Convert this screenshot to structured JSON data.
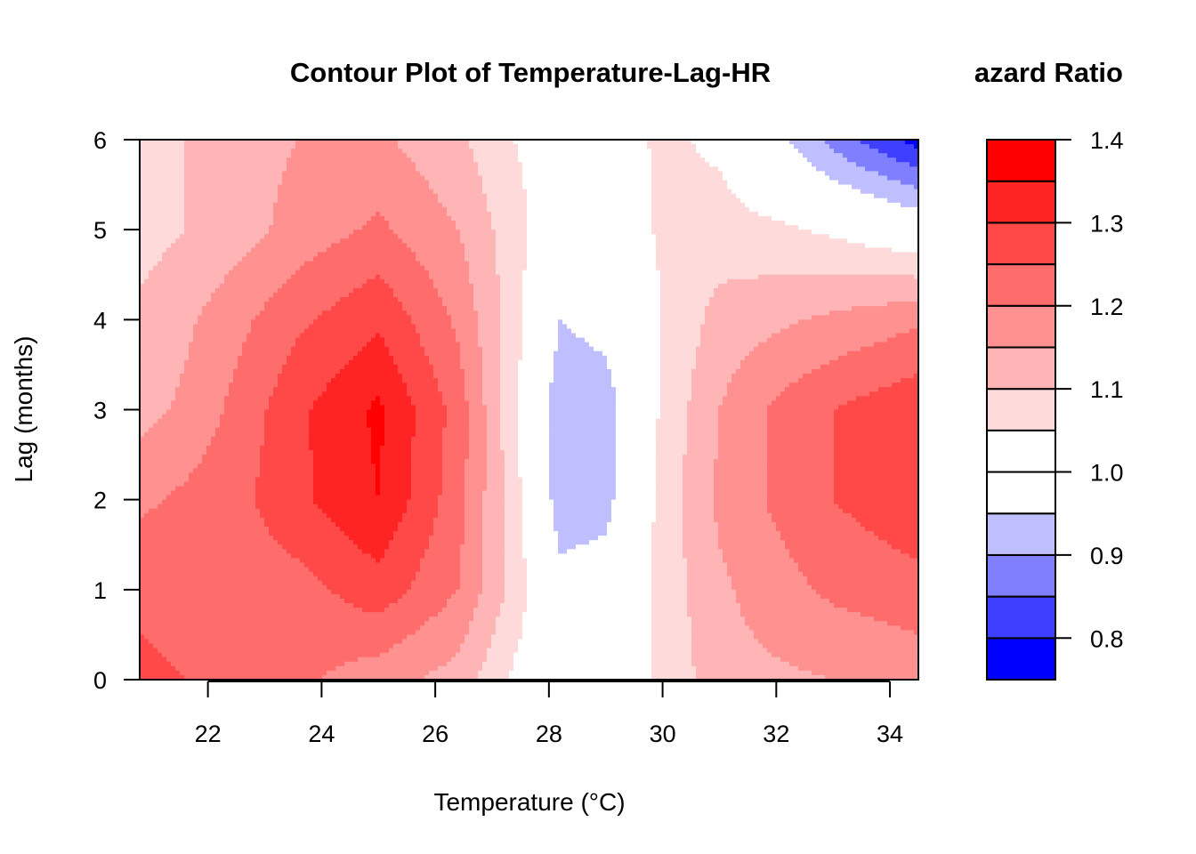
{
  "chart_data": {
    "type": "heatmap",
    "subtype": "filled-contour",
    "title": "Contour Plot of Temperature-Lag-HR",
    "legend_title": "Hazard Ratio",
    "legend_title_visible": "azard Ratio",
    "xlabel": "Temperature (°C)",
    "ylabel": "Lag (months)",
    "xlim": [
      20.8,
      34.5
    ],
    "ylim": [
      0,
      6
    ],
    "x_ticks": [
      "22",
      "24",
      "26",
      "28",
      "30",
      "32",
      "34"
    ],
    "y_ticks": [
      "0",
      "1",
      "2",
      "3",
      "4",
      "5",
      "6"
    ],
    "legend_ticks": [
      "0.8",
      "0.9",
      "1.0",
      "1.1",
      "1.2",
      "1.3",
      "1.4"
    ],
    "legend_range": [
      0.75,
      1.4
    ],
    "levels": [
      0.75,
      0.8,
      0.85,
      0.9,
      0.95,
      1.0,
      1.05,
      1.1,
      1.15,
      1.2,
      1.25,
      1.3,
      1.35,
      1.4
    ],
    "level_colors": [
      "#0000FF",
      "#3F3FFF",
      "#7F7FFF",
      "#BFBFFF",
      "#FFFFFF",
      "#FFFFFF",
      "#FFDADA",
      "#FFB5B5",
      "#FF9191",
      "#FF6C6C",
      "#FF4848",
      "#FF2424",
      "#FF0000"
    ],
    "grid": false,
    "legend_position": "right",
    "temperature_grid": [
      20.8,
      21.6,
      22.6,
      23.6,
      25.0,
      26.4,
      27.4,
      28.2,
      29.0,
      30.0,
      31.0,
      32.0,
      33.0,
      34.5
    ],
    "lag_grid": [
      0,
      1,
      2,
      3,
      4,
      5,
      6
    ],
    "hr_matrix": [
      [
        1.26,
        1.25,
        1.23,
        1.21,
        1.17,
        1.13,
        1.04,
        1.0,
        1.0,
        1.06,
        1.13,
        1.14,
        1.15,
        1.17
      ],
      [
        1.24,
        1.23,
        1.22,
        1.23,
        1.28,
        1.2,
        1.08,
        0.97,
        0.98,
        1.07,
        1.14,
        1.18,
        1.21,
        1.23
      ],
      [
        1.19,
        1.21,
        1.24,
        1.29,
        1.35,
        1.22,
        1.07,
        0.92,
        0.93,
        1.07,
        1.16,
        1.21,
        1.25,
        1.29
      ],
      [
        1.13,
        1.16,
        1.22,
        1.29,
        1.36,
        1.23,
        1.06,
        0.91,
        0.92,
        1.06,
        1.15,
        1.21,
        1.25,
        1.29
      ],
      [
        1.11,
        1.14,
        1.19,
        1.24,
        1.29,
        1.19,
        1.07,
        0.95,
        0.97,
        1.05,
        1.12,
        1.14,
        1.16,
        1.19
      ],
      [
        1.08,
        1.1,
        1.13,
        1.17,
        1.21,
        1.15,
        1.07,
        1.0,
        1.0,
        1.06,
        1.07,
        1.06,
        1.04,
        1.0
      ],
      [
        1.08,
        1.1,
        1.13,
        1.15,
        1.16,
        1.11,
        1.05,
        1.02,
        1.02,
        1.06,
        1.04,
        0.97,
        0.88,
        0.78
      ]
    ]
  }
}
